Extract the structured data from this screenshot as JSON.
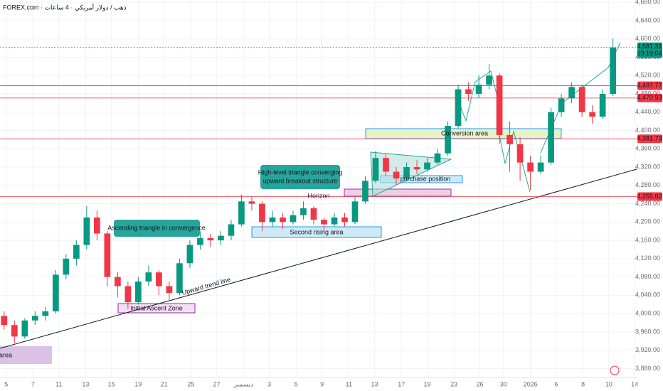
{
  "chart_data": {
    "type": "candlestick",
    "header": "FOREX.com · ذهب / دولار أمريكي · 4 ساعات",
    "up_color": "#089981",
    "down_color": "#f23645",
    "open": [
      3995,
      3975,
      3950,
      3985,
      3995,
      4005,
      4085,
      4120,
      4150,
      4210,
      4175,
      4080,
      4060,
      4025,
      4070,
      4090,
      4060,
      4045,
      4110,
      4150,
      4165,
      4160,
      4170,
      4195,
      4245,
      4240,
      4200,
      4210,
      4200,
      4215,
      4230,
      4205,
      4195,
      4210,
      4200,
      4245,
      4290,
      4340,
      4310,
      4295,
      4320,
      4315,
      4330,
      4350,
      4410,
      4490,
      4480,
      4500,
      4520,
      4390,
      4370,
      4330,
      4310,
      4330,
      4440,
      4470,
      4495,
      4440,
      4430,
      4480
    ],
    "high": [
      4005,
      3985,
      3990,
      4005,
      4015,
      4095,
      4130,
      4160,
      4235,
      4225,
      4180,
      4090,
      4070,
      4080,
      4105,
      4095,
      4070,
      4120,
      4160,
      4180,
      4175,
      4180,
      4205,
      4260,
      4255,
      4245,
      4225,
      4220,
      4225,
      4245,
      4235,
      4210,
      4220,
      4220,
      4255,
      4300,
      4355,
      4350,
      4320,
      4330,
      4335,
      4340,
      4360,
      4420,
      4500,
      4505,
      4520,
      4545,
      4525,
      4420,
      4385,
      4345,
      4345,
      4450,
      4480,
      4505,
      4500,
      4455,
      4490,
      4601
    ],
    "low": [
      3965,
      3935,
      3945,
      3975,
      3985,
      4000,
      4075,
      4105,
      4140,
      4160,
      4060,
      4035,
      4010,
      4020,
      4060,
      4040,
      4030,
      4040,
      4100,
      4140,
      4145,
      4150,
      4160,
      4190,
      4225,
      4180,
      4190,
      4185,
      4195,
      4205,
      4195,
      4180,
      4190,
      4190,
      4195,
      4240,
      4285,
      4300,
      4280,
      4290,
      4305,
      4310,
      4325,
      4345,
      4405,
      4465,
      4470,
      4490,
      4370,
      4310,
      4290,
      4270,
      4305,
      4325,
      4430,
      4460,
      4430,
      4415,
      4425,
      4475
    ],
    "close": [
      3975,
      3950,
      3985,
      3995,
      4005,
      4085,
      4120,
      4150,
      4210,
      4175,
      4080,
      4060,
      4025,
      4070,
      4090,
      4060,
      4045,
      4110,
      4150,
      4165,
      4160,
      4170,
      4195,
      4245,
      4240,
      4200,
      4210,
      4200,
      4215,
      4230,
      4205,
      4195,
      4210,
      4200,
      4245,
      4290,
      4340,
      4310,
      4295,
      4320,
      4315,
      4330,
      4350,
      4410,
      4490,
      4480,
      4500,
      4520,
      4390,
      4370,
      4330,
      4310,
      4330,
      4440,
      4470,
      4495,
      4440,
      4430,
      4480,
      4581.31
    ],
    "xlim": [
      -0.4,
      61.3
    ],
    "xticks": [
      {
        "value": 0.2,
        "label": "5"
      },
      {
        "value": 2.8,
        "label": "7"
      },
      {
        "value": 5.3,
        "label": "11"
      },
      {
        "value": 7.9,
        "label": "13"
      },
      {
        "value": 10.4,
        "label": "15"
      },
      {
        "value": 13.0,
        "label": "19"
      },
      {
        "value": 15.5,
        "label": "21"
      },
      {
        "value": 18.1,
        "label": "25"
      },
      {
        "value": 20.6,
        "label": "27"
      },
      {
        "value": 23.2,
        "label": "ديسمبر"
      },
      {
        "value": 25.7,
        "label": "3"
      },
      {
        "value": 28.3,
        "label": "5"
      },
      {
        "value": 30.8,
        "label": "9"
      },
      {
        "value": 33.4,
        "label": "11"
      },
      {
        "value": 35.9,
        "label": "13"
      },
      {
        "value": 38.5,
        "label": "17"
      },
      {
        "value": 41.0,
        "label": "19"
      },
      {
        "value": 43.6,
        "label": "23"
      },
      {
        "value": 46.1,
        "label": "26"
      },
      {
        "value": 48.4,
        "label": "30"
      },
      {
        "value": 51.0,
        "label": "2026"
      },
      {
        "value": 53.5,
        "label": "6"
      },
      {
        "value": 56.1,
        "label": "8"
      },
      {
        "value": 58.6,
        "label": "10"
      },
      {
        "value": 61.1,
        "label": "14"
      }
    ],
    "ylim": [
      3862,
      4685
    ],
    "yticks": [
      {
        "value": 3880,
        "label": "3,880.00"
      },
      {
        "value": 3920,
        "label": "3,920.00"
      },
      {
        "value": 3960,
        "label": "3,960.00"
      },
      {
        "value": 4000,
        "label": "4,000.00"
      },
      {
        "value": 4040,
        "label": "4,040.00"
      },
      {
        "value": 4080,
        "label": "4,080.00"
      },
      {
        "value": 4120,
        "label": "4,120.00"
      },
      {
        "value": 4160,
        "label": "4,160.00"
      },
      {
        "value": 4200,
        "label": "4,200.00"
      },
      {
        "value": 4240,
        "label": "4,240.00"
      },
      {
        "value": 4280,
        "label": "4,280.00"
      },
      {
        "value": 4320,
        "label": "4,320.00"
      },
      {
        "value": 4360,
        "label": "4,360.00"
      },
      {
        "value": 4400,
        "label": "4,400.00"
      },
      {
        "value": 4440,
        "label": "4,440.00"
      },
      {
        "value": 4480,
        "label": "4,480.00"
      },
      {
        "value": 4520,
        "label": "4,520.00"
      },
      {
        "value": 4560,
        "label": "4,560.00"
      },
      {
        "value": 4600,
        "label": "4,600.00"
      },
      {
        "value": 4640,
        "label": "4,640.00"
      },
      {
        "value": 4680,
        "label": "4,680.00"
      }
    ],
    "levels": [
      {
        "value": 4497.77,
        "label": "4,497.77",
        "color": "#f23645"
      },
      {
        "value": 4470.93,
        "label": "4,470.93",
        "color": "#f23645"
      },
      {
        "value": 4381.73,
        "label": "4,381.73",
        "color": "#f23645"
      },
      {
        "value": 4255.62,
        "label": "4,255.62",
        "color": "#f23645"
      }
    ],
    "last_price": {
      "value": 4581.31,
      "label": "4,581.31",
      "color": "#089981"
    },
    "countdown": "03:19:04",
    "annotations": [
      "Ascending triangle in convergence",
      "High-level triangle converging",
      "upward breakout structure",
      "Upward trend line",
      "Initial Ascent Zone",
      "Second rising area",
      "Conversion area",
      "purchase position",
      "Horizon",
      "area"
    ]
  }
}
